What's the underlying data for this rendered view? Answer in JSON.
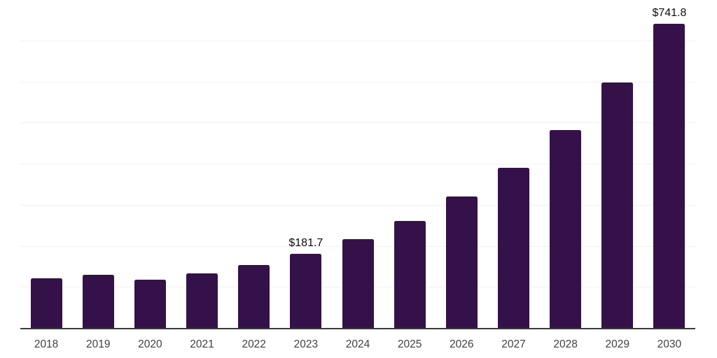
{
  "chart_data": {
    "type": "bar",
    "title": "",
    "xlabel": "",
    "ylabel": "",
    "categories": [
      "2018",
      "2019",
      "2020",
      "2021",
      "2022",
      "2023",
      "2024",
      "2025",
      "2026",
      "2027",
      "2028",
      "2029",
      "2030"
    ],
    "values": [
      123,
      131,
      120,
      135,
      155,
      181.7,
      218,
      262,
      321,
      391,
      484,
      600,
      741.8
    ],
    "data_labels": [
      "",
      "",
      "",
      "",
      "",
      "$181.7",
      "",
      "",
      "",
      "",
      "",
      "",
      "$741.8"
    ],
    "ylim": [
      0,
      800
    ],
    "gridline_interval": 100,
    "grid": "horizontal-only",
    "legend": "none",
    "bar_color": "#351149",
    "gridline_color": "#f2f2f2",
    "axis_line_color": "#3b3b3b",
    "tick_label_color": "#3f3f3f",
    "value_label_color": "#0d0d0d",
    "background_color": "#ffffff"
  }
}
